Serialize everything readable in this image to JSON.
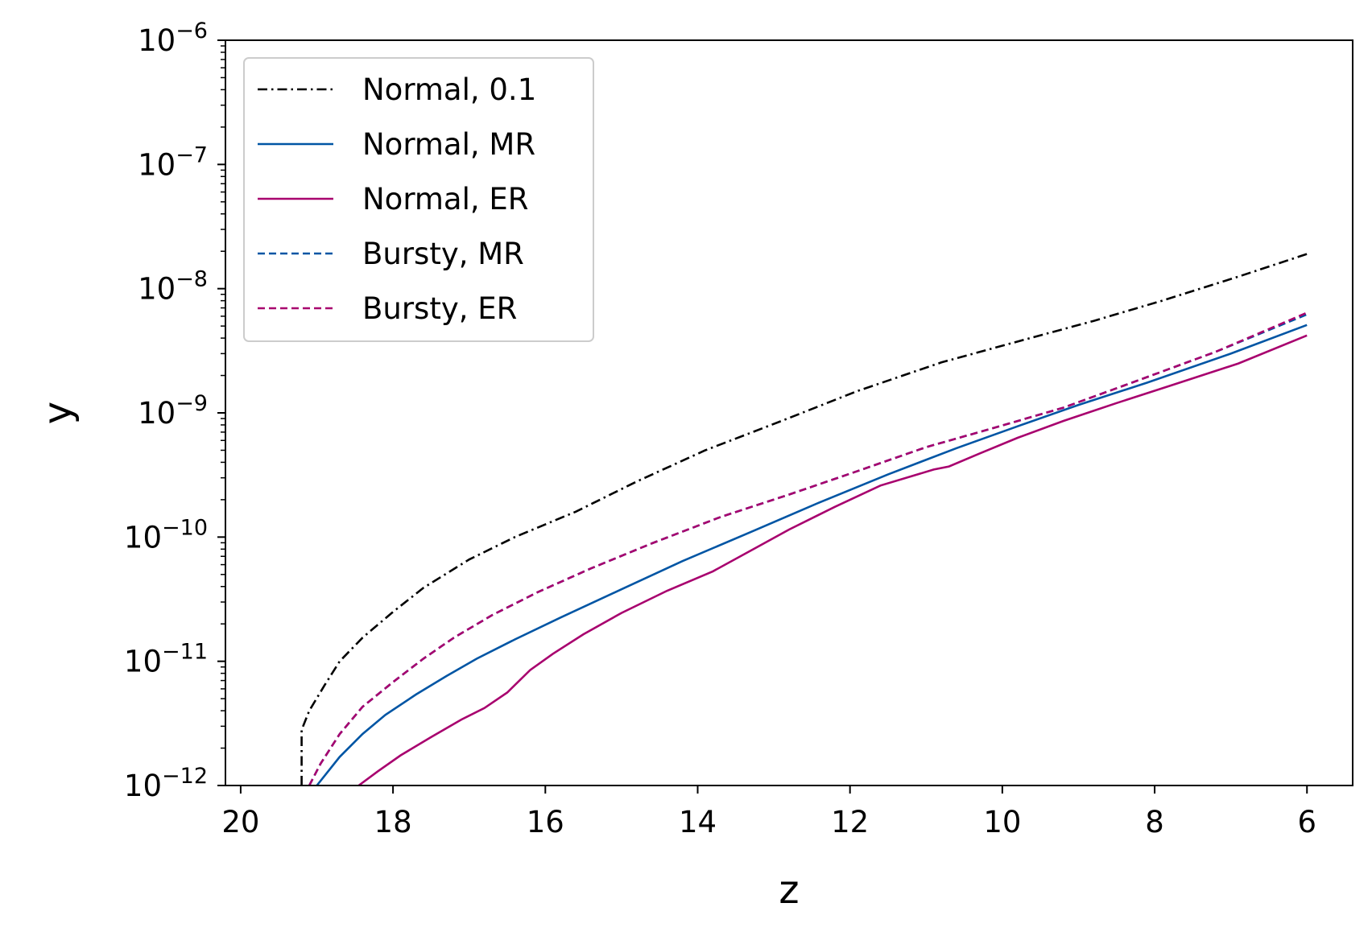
{
  "chart_data": {
    "type": "line",
    "title": "",
    "xlabel": "z",
    "ylabel": "y",
    "x_inverted": true,
    "xlim": [
      20.2,
      5.4
    ],
    "ylim": [
      1e-12,
      1e-06
    ],
    "yscale": "log",
    "grid": false,
    "legend_position": "top-left",
    "x_ticks": [
      {
        "value": 20,
        "label": "20"
      },
      {
        "value": 18,
        "label": "18"
      },
      {
        "value": 16,
        "label": "16"
      },
      {
        "value": 14,
        "label": "14"
      },
      {
        "value": 12,
        "label": "12"
      },
      {
        "value": 10,
        "label": "10"
      },
      {
        "value": 8,
        "label": "8"
      },
      {
        "value": 6,
        "label": "6"
      }
    ],
    "y_ticks": [
      {
        "exp": -6,
        "base": "10",
        "sup": "−6"
      },
      {
        "exp": -7,
        "base": "10",
        "sup": "−7"
      },
      {
        "exp": -8,
        "base": "10",
        "sup": "−8"
      },
      {
        "exp": -9,
        "base": "10",
        "sup": "−9"
      },
      {
        "exp": -10,
        "base": "10",
        "sup": "−10"
      },
      {
        "exp": -11,
        "base": "10",
        "sup": "−11"
      },
      {
        "exp": -12,
        "base": "10",
        "sup": "−12"
      }
    ],
    "series": [
      {
        "name": "Normal, 0.1",
        "color": "#000000",
        "dash": "dashdot",
        "x": [
          19.2,
          19.2,
          19.1,
          18.9,
          18.7,
          18.4,
          18.0,
          17.6,
          17.0,
          16.4,
          15.6,
          14.8,
          13.9,
          12.9,
          11.9,
          10.8,
          9.7,
          8.8,
          7.9,
          6.9,
          6.0
        ],
        "y": [
          1e-12,
          2.8e-12,
          4e-12,
          6.4e-12,
          1e-11,
          1.55e-11,
          2.5e-11,
          3.9e-11,
          6.6e-11,
          1e-10,
          1.6e-10,
          2.8e-10,
          5e-10,
          8.6e-10,
          1.5e-09,
          2.55e-09,
          3.9e-09,
          5.5e-09,
          8e-09,
          1.25e-08,
          1.9e-08
        ]
      },
      {
        "name": "Normal, MR",
        "color": "#0055a4",
        "dash": "solid",
        "x": [
          19.0,
          18.7,
          18.4,
          18.1,
          17.7,
          17.3,
          16.9,
          16.4,
          15.8,
          15.0,
          14.2,
          13.3,
          12.4,
          11.5,
          10.6,
          9.8,
          9.0,
          8.1,
          7.0,
          6.0
        ],
        "y": [
          1e-12,
          1.7e-12,
          2.6e-12,
          3.7e-12,
          5.4e-12,
          7.6e-12,
          1.05e-11,
          1.5e-11,
          2.25e-11,
          3.8e-11,
          6.4e-11,
          1.1e-10,
          1.9e-10,
          3.2e-10,
          5.2e-10,
          7.8e-10,
          1.16e-09,
          1.75e-09,
          3e-09,
          5.1e-09
        ]
      },
      {
        "name": "Normal, ER",
        "color": "#a8006e",
        "dash": "solid",
        "x": [
          18.45,
          18.2,
          17.9,
          17.5,
          17.1,
          16.8,
          16.5,
          16.2,
          15.9,
          15.5,
          15.0,
          14.4,
          13.8,
          13.3,
          12.8,
          12.2,
          11.6,
          10.9,
          10.7,
          10.3,
          9.8,
          9.2,
          8.5,
          7.8,
          6.9,
          6.0
        ],
        "y": [
          1e-12,
          1.3e-12,
          1.75e-12,
          2.45e-12,
          3.4e-12,
          4.2e-12,
          5.6e-12,
          8.5e-12,
          1.15e-11,
          1.65e-11,
          2.45e-11,
          3.7e-11,
          5.3e-11,
          7.8e-11,
          1.15e-10,
          1.75e-10,
          2.6e-10,
          3.5e-10,
          3.7e-10,
          4.7e-10,
          6.3e-10,
          8.6e-10,
          1.2e-09,
          1.65e-09,
          2.5e-09,
          4.2e-09
        ]
      },
      {
        "name": "Bursty, MR",
        "color": "#0055a4",
        "dash": "dashed",
        "x": [
          19.1,
          18.95,
          18.7,
          18.4,
          18.0,
          17.6,
          17.2,
          16.7,
          16.1,
          15.4,
          14.6,
          13.7,
          12.8,
          11.9,
          11.0,
          10.1,
          9.2,
          8.3,
          7.2,
          6.0
        ],
        "y": [
          1e-12,
          1.5e-12,
          2.6e-12,
          4.3e-12,
          6.8e-12,
          1.05e-11,
          1.55e-11,
          2.35e-11,
          3.6e-11,
          5.6e-11,
          8.9e-11,
          1.45e-10,
          2.2e-10,
          3.4e-10,
          5.3e-10,
          7.6e-10,
          1.1e-09,
          1.75e-09,
          3.1e-09,
          6.2e-09
        ]
      },
      {
        "name": "Bursty, ER",
        "color": "#a8006e",
        "dash": "dashed",
        "x": [
          19.1,
          18.95,
          18.7,
          18.4,
          18.0,
          17.6,
          17.2,
          16.7,
          16.1,
          15.4,
          14.6,
          13.7,
          12.8,
          11.9,
          11.0,
          10.1,
          9.2,
          8.3,
          7.2,
          6.0
        ],
        "y": [
          1e-12,
          1.5e-12,
          2.6e-12,
          4.3e-12,
          6.8e-12,
          1.05e-11,
          1.55e-11,
          2.35e-11,
          3.6e-11,
          5.6e-11,
          8.9e-11,
          1.45e-10,
          2.2e-10,
          3.4e-10,
          5.3e-10,
          7.6e-10,
          1.1e-09,
          1.75e-09,
          3.1e-09,
          6.4e-09
        ]
      }
    ]
  }
}
